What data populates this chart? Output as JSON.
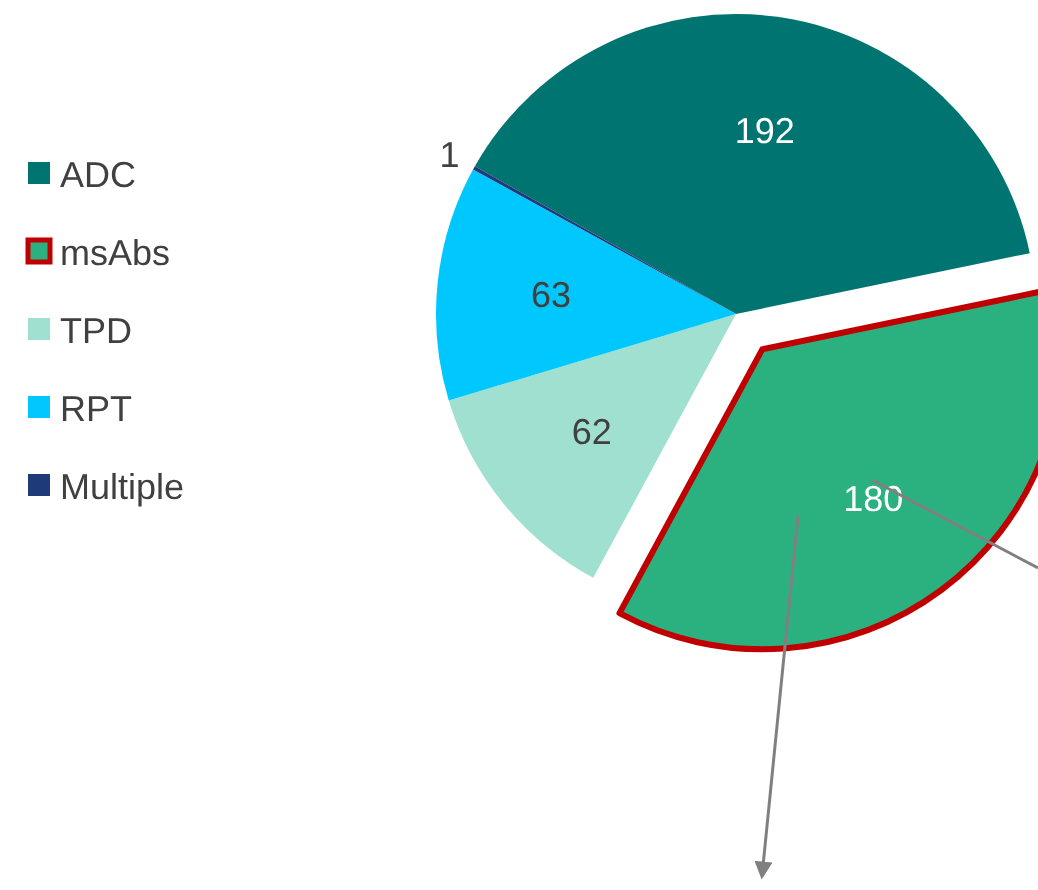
{
  "chart_data": {
    "type": "pie",
    "categories": [
      "ADC",
      "msAbs",
      "TPD",
      "RPT",
      "Multiple"
    ],
    "values": [
      192,
      180,
      62,
      63,
      1
    ],
    "colors": [
      "#007470",
      "#2bb180",
      "#a0e0d0",
      "#00c8ff",
      "#1f3a78"
    ],
    "data_labels": true,
    "legend": "left"
  }
}
